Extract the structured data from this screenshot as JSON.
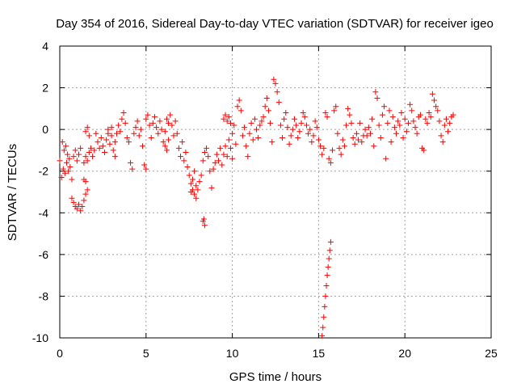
{
  "chart_data": {
    "type": "scatter",
    "title": "Day 354 of 2016, Sidereal Day-to-day VTEC variation (SDTVAR) for receiver igeo",
    "xlabel": "GPS time / hours",
    "ylabel": "SDTVAR / TECUs",
    "xlim": [
      0,
      25
    ],
    "ylim": [
      -10,
      4
    ],
    "xticks": [
      0,
      5,
      10,
      15,
      20,
      25
    ],
    "xtick_labels": [
      "0",
      "5",
      "10",
      "15",
      "20",
      "25"
    ],
    "yticks": [
      -10,
      -8,
      -6,
      -4,
      -2,
      0,
      2,
      4
    ],
    "ytick_labels": [
      "-10",
      "-8",
      "-6",
      "-4",
      "-2",
      "0",
      "2",
      "4"
    ],
    "grid": true,
    "marker": "+",
    "series": [
      {
        "name": "igeo",
        "color": "#ff0000",
        "points": [
          [
            0.0,
            -1.5
          ],
          [
            0.1,
            -2.3
          ],
          [
            0.15,
            -0.6
          ],
          [
            0.2,
            -1.9
          ],
          [
            0.25,
            -1.0
          ],
          [
            0.3,
            -2.1
          ],
          [
            0.35,
            -0.8
          ],
          [
            0.4,
            -1.6
          ],
          [
            0.45,
            -1.2
          ],
          [
            0.5,
            -2.0
          ],
          [
            0.55,
            -1.4
          ],
          [
            0.6,
            -1.8
          ],
          [
            0.7,
            -2.4
          ],
          [
            0.8,
            -1.3
          ],
          [
            0.9,
            -1.0
          ],
          [
            1.0,
            -1.5
          ],
          [
            1.1,
            -1.2
          ],
          [
            1.2,
            -0.9
          ],
          [
            0.7,
            -3.3
          ],
          [
            0.8,
            -3.5
          ],
          [
            0.9,
            -3.7
          ],
          [
            1.0,
            -3.8
          ],
          [
            1.1,
            -3.6
          ],
          [
            1.2,
            -3.9
          ],
          [
            1.3,
            -3.7
          ],
          [
            1.4,
            -3.4
          ],
          [
            1.5,
            -3.1
          ],
          [
            1.6,
            -2.9
          ],
          [
            1.4,
            -2.4
          ],
          [
            1.5,
            -2.5
          ],
          [
            1.5,
            -0.1
          ],
          [
            1.6,
            0.1
          ],
          [
            1.7,
            -0.3
          ],
          [
            1.4,
            -1.6
          ],
          [
            1.5,
            -1.3
          ],
          [
            1.6,
            -1.5
          ],
          [
            1.7,
            -1.1
          ],
          [
            1.8,
            -0.9
          ],
          [
            1.9,
            -1.3
          ],
          [
            2.0,
            -1.0
          ],
          [
            2.1,
            -0.2
          ],
          [
            2.2,
            -0.6
          ],
          [
            2.3,
            -0.9
          ],
          [
            2.4,
            -0.4
          ],
          [
            2.5,
            -0.8
          ],
          [
            2.6,
            -1.1
          ],
          [
            2.7,
            -0.5
          ],
          [
            2.8,
            -0.2
          ],
          [
            2.9,
            -0.7
          ],
          [
            3.0,
            -0.3
          ],
          [
            3.1,
            -1.0
          ],
          [
            3.2,
            -0.6
          ],
          [
            2.8,
            0.0
          ],
          [
            3.0,
            0.1
          ],
          [
            3.2,
            -1.3
          ],
          [
            3.3,
            -0.2
          ],
          [
            3.4,
            0.2
          ],
          [
            3.5,
            -0.1
          ],
          [
            3.6,
            0.5
          ],
          [
            3.7,
            0.8
          ],
          [
            3.8,
            0.3
          ],
          [
            3.9,
            -0.4
          ],
          [
            4.0,
            -0.6
          ],
          [
            4.1,
            -1.6
          ],
          [
            4.2,
            -1.9
          ],
          [
            4.3,
            -0.2
          ],
          [
            4.4,
            0.1
          ],
          [
            4.5,
            0.4
          ],
          [
            4.6,
            -0.3
          ],
          [
            4.7,
            0.0
          ],
          [
            4.8,
            -0.8
          ],
          [
            4.9,
            -1.7
          ],
          [
            5.0,
            -1.9
          ],
          [
            5.0,
            0.5
          ],
          [
            5.1,
            0.7
          ],
          [
            5.2,
            0.2
          ],
          [
            5.3,
            -0.4
          ],
          [
            5.4,
            0.3
          ],
          [
            5.5,
            0.6
          ],
          [
            5.6,
            0.1
          ],
          [
            5.7,
            -0.2
          ],
          [
            5.8,
            0.4
          ],
          [
            5.9,
            0.0
          ],
          [
            6.0,
            -0.6
          ],
          [
            6.1,
            -0.1
          ],
          [
            6.2,
            0.5
          ],
          [
            6.3,
            0.3
          ],
          [
            6.4,
            0.7
          ],
          [
            6.5,
            0.2
          ],
          [
            6.6,
            -0.3
          ],
          [
            6.7,
            0.4
          ],
          [
            6.8,
            -0.2
          ],
          [
            6.1,
            -0.8
          ],
          [
            6.2,
            -1.0
          ],
          [
            6.3,
            -0.5
          ],
          [
            6.9,
            -0.9
          ],
          [
            7.0,
            -1.3
          ],
          [
            7.1,
            -0.6
          ],
          [
            7.2,
            -1.5
          ],
          [
            7.3,
            -1.1
          ],
          [
            7.4,
            -1.8
          ],
          [
            7.5,
            -2.2
          ],
          [
            7.6,
            -2.6
          ],
          [
            7.7,
            -2.9
          ],
          [
            7.8,
            -3.1
          ],
          [
            7.9,
            -3.3
          ],
          [
            7.6,
            -3.0
          ],
          [
            7.7,
            -2.4
          ],
          [
            7.8,
            -2.0
          ],
          [
            7.9,
            -2.7
          ],
          [
            8.0,
            -2.9
          ],
          [
            8.1,
            -2.5
          ],
          [
            8.2,
            -2.2
          ],
          [
            8.3,
            -1.5
          ],
          [
            8.4,
            -1.1
          ],
          [
            8.5,
            -0.9
          ],
          [
            8.6,
            -1.3
          ],
          [
            8.7,
            -2.0
          ],
          [
            8.8,
            -2.8
          ],
          [
            8.9,
            -1.9
          ],
          [
            9.0,
            -1.6
          ],
          [
            8.3,
            -4.4
          ],
          [
            8.4,
            -4.6
          ],
          [
            8.35,
            -4.3
          ],
          [
            9.1,
            -1.2
          ],
          [
            9.2,
            -1.5
          ],
          [
            9.3,
            -0.9
          ],
          [
            9.4,
            -1.7
          ],
          [
            9.5,
            -1.2
          ],
          [
            9.6,
            -0.8
          ],
          [
            9.7,
            -1.3
          ],
          [
            9.8,
            -0.5
          ],
          [
            9.9,
            -0.9
          ],
          [
            10.0,
            -1.4
          ],
          [
            9.5,
            0.5
          ],
          [
            9.6,
            0.7
          ],
          [
            9.7,
            0.4
          ],
          [
            9.8,
            0.6
          ],
          [
            9.9,
            0.3
          ],
          [
            10.0,
            -0.2
          ],
          [
            10.1,
            0.2
          ],
          [
            10.2,
            -0.7
          ],
          [
            10.3,
            1.1
          ],
          [
            10.4,
            1.4
          ],
          [
            10.5,
            0.9
          ],
          [
            10.6,
            -0.3
          ],
          [
            10.7,
            0.1
          ],
          [
            10.8,
            -0.8
          ],
          [
            10.9,
            -1.3
          ],
          [
            11.0,
            -0.2
          ],
          [
            11.1,
            0.3
          ],
          [
            11.2,
            -0.5
          ],
          [
            11.3,
            0.5
          ],
          [
            11.4,
            0.0
          ],
          [
            11.5,
            -0.4
          ],
          [
            11.6,
            0.2
          ],
          [
            11.7,
            0.4
          ],
          [
            11.8,
            0.6
          ],
          [
            11.9,
            1.1
          ],
          [
            12.0,
            1.5
          ],
          [
            12.1,
            0.9
          ],
          [
            12.2,
            0.3
          ],
          [
            12.3,
            -0.6
          ],
          [
            12.4,
            2.4
          ],
          [
            12.5,
            2.2
          ],
          [
            12.6,
            1.8
          ],
          [
            12.7,
            1.3
          ],
          [
            12.8,
            0.2
          ],
          [
            12.9,
            -0.4
          ],
          [
            13.0,
            0.5
          ],
          [
            13.1,
            0.8
          ],
          [
            13.2,
            0.1
          ],
          [
            13.3,
            -0.7
          ],
          [
            13.4,
            -0.3
          ],
          [
            13.5,
            0.0
          ],
          [
            13.6,
            0.5
          ],
          [
            13.7,
            0.2
          ],
          [
            13.8,
            -0.4
          ],
          [
            13.9,
            -0.1
          ],
          [
            14.0,
            0.3
          ],
          [
            14.1,
            0.8
          ],
          [
            14.2,
            0.6
          ],
          [
            14.3,
            0.2
          ],
          [
            14.4,
            -0.2
          ],
          [
            14.5,
            0.0
          ],
          [
            14.6,
            -0.6
          ],
          [
            14.7,
            -0.3
          ],
          [
            14.8,
            0.4
          ],
          [
            14.9,
            0.1
          ],
          [
            15.0,
            -0.5
          ],
          [
            15.1,
            -0.8
          ],
          [
            15.2,
            -1.2
          ],
          [
            15.3,
            -0.9
          ],
          [
            15.4,
            0.8
          ],
          [
            15.5,
            0.6
          ],
          [
            15.6,
            -1.4
          ],
          [
            15.7,
            -1.6
          ],
          [
            15.8,
            -1.0
          ],
          [
            15.9,
            0.9
          ],
          [
            16.0,
            1.1
          ],
          [
            16.1,
            -0.2
          ],
          [
            16.2,
            -0.9
          ],
          [
            16.3,
            -1.2
          ],
          [
            16.4,
            -0.5
          ],
          [
            16.5,
            -0.8
          ],
          [
            16.6,
            0.2
          ],
          [
            16.7,
            1.0
          ],
          [
            16.8,
            0.7
          ],
          [
            16.9,
            0.3
          ],
          [
            17.0,
            -0.4
          ],
          [
            17.1,
            -0.7
          ],
          [
            17.2,
            -0.2
          ],
          [
            17.3,
            -0.5
          ],
          [
            17.4,
            0.3
          ],
          [
            17.5,
            -0.6
          ],
          [
            17.6,
            -0.3
          ],
          [
            17.7,
            0.0
          ],
          [
            15.2,
            -9.9
          ],
          [
            15.25,
            -9.5
          ],
          [
            15.3,
            -9.0
          ],
          [
            15.35,
            -8.5
          ],
          [
            15.4,
            -8.0
          ],
          [
            15.45,
            -7.5
          ],
          [
            15.5,
            -7.0
          ],
          [
            15.55,
            -6.6
          ],
          [
            15.6,
            -6.2
          ],
          [
            15.65,
            -5.8
          ],
          [
            15.7,
            -5.4
          ],
          [
            17.8,
            -0.3
          ],
          [
            17.9,
            0.1
          ],
          [
            18.0,
            -0.2
          ],
          [
            18.1,
            0.5
          ],
          [
            18.2,
            -0.8
          ],
          [
            18.3,
            1.8
          ],
          [
            18.4,
            1.5
          ],
          [
            18.5,
            0.2
          ],
          [
            18.6,
            -0.4
          ],
          [
            18.7,
            0.7
          ],
          [
            18.8,
            1.1
          ],
          [
            18.9,
            -1.4
          ],
          [
            19.0,
            0.3
          ],
          [
            19.1,
            0.9
          ],
          [
            19.2,
            -0.6
          ],
          [
            19.3,
            0.6
          ],
          [
            19.4,
            0.1
          ],
          [
            19.5,
            -0.2
          ],
          [
            19.6,
            0.4
          ],
          [
            19.7,
            0.2
          ],
          [
            19.8,
            0.8
          ],
          [
            19.9,
            -0.4
          ],
          [
            20.0,
            0.5
          ],
          [
            20.1,
            -0.1
          ],
          [
            20.2,
            0.3
          ],
          [
            20.3,
            1.2
          ],
          [
            20.4,
            0.9
          ],
          [
            20.5,
            0.4
          ],
          [
            20.6,
            0.1
          ],
          [
            20.7,
            -0.2
          ],
          [
            20.8,
            0.6
          ],
          [
            20.9,
            0.7
          ],
          [
            21.0,
            -0.9
          ],
          [
            21.1,
            -1.0
          ],
          [
            21.2,
            0.5
          ],
          [
            21.3,
            0.3
          ],
          [
            21.4,
            0.8
          ],
          [
            21.5,
            0.6
          ],
          [
            21.6,
            1.7
          ],
          [
            21.7,
            1.4
          ],
          [
            21.8,
            1.1
          ],
          [
            21.9,
            0.9
          ],
          [
            22.0,
            0.4
          ],
          [
            22.1,
            -0.3
          ],
          [
            22.2,
            -0.6
          ],
          [
            22.3,
            0.2
          ],
          [
            22.4,
            0.5
          ],
          [
            22.5,
            -0.1
          ],
          [
            22.6,
            0.3
          ],
          [
            22.7,
            0.6
          ],
          [
            22.8,
            0.7
          ]
        ]
      }
    ]
  }
}
